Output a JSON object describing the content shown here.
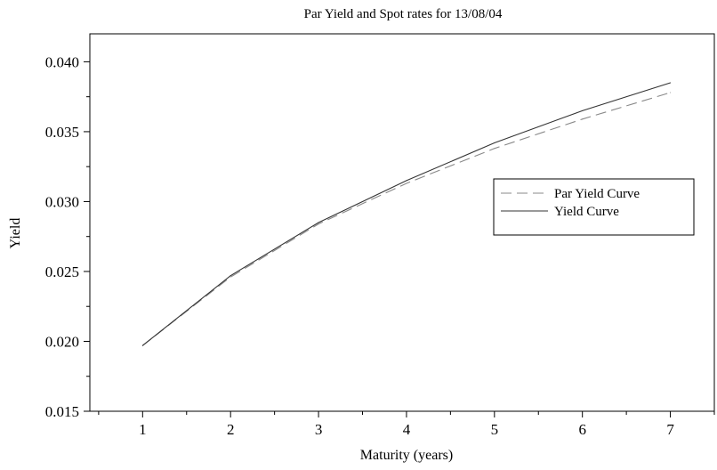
{
  "chart_data": {
    "type": "line",
    "title": "Par Yield and Spot rates for  13/08/04",
    "xlabel": "Maturity (years)",
    "ylabel": "Yield",
    "x": [
      1,
      2,
      3,
      4,
      5,
      6,
      7
    ],
    "xlim": [
      0.4,
      7.5
    ],
    "ylim": [
      0.015,
      0.042
    ],
    "xticks": [
      1,
      2,
      3,
      4,
      5,
      6,
      7
    ],
    "xtick_labels": [
      "1",
      "2",
      "3",
      "4",
      "5",
      "6",
      "7"
    ],
    "yticks": [
      0.015,
      0.02,
      0.025,
      0.03,
      0.035,
      0.04
    ],
    "ytick_labels": [
      "0.015",
      "0.020",
      "0.025",
      "0.030",
      "0.035",
      "0.040"
    ],
    "legend_position": "right",
    "grid": false,
    "series": [
      {
        "name": "Par Yield Curve",
        "style": "dashed",
        "color": "#888888",
        "values": [
          0.0197,
          0.0246,
          0.0284,
          0.0313,
          0.0338,
          0.0359,
          0.0378
        ]
      },
      {
        "name": "Yield Curve",
        "style": "solid",
        "color": "#333333",
        "values": [
          0.0197,
          0.0247,
          0.0285,
          0.0315,
          0.0342,
          0.0365,
          0.0385
        ]
      }
    ]
  }
}
